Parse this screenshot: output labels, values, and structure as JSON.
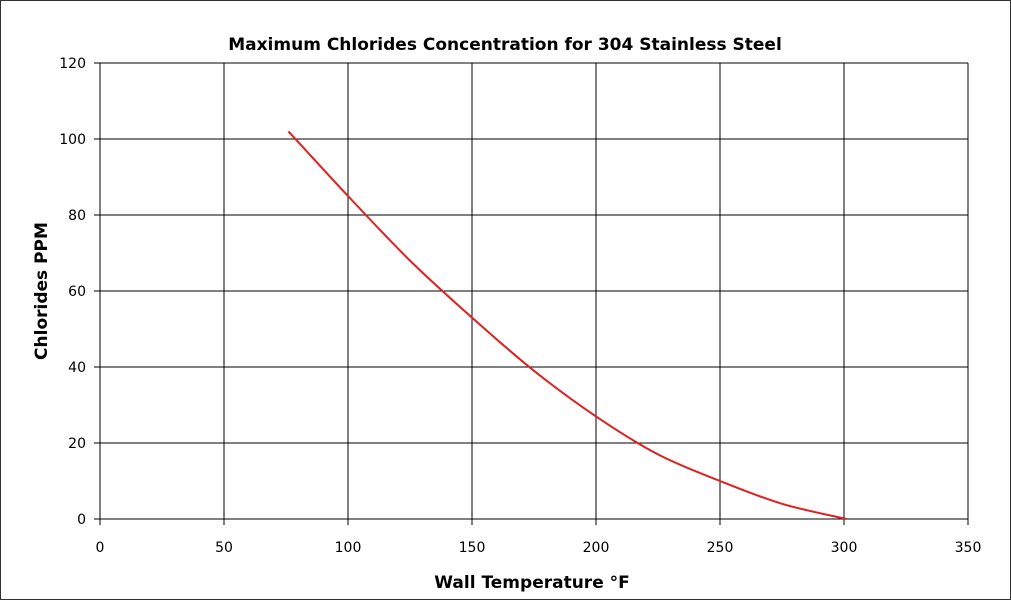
{
  "chart_data": {
    "type": "line",
    "title": "Maximum Chlorides Concentration for 304 Stainless Steel",
    "xlabel": "Wall Temperature °F",
    "ylabel": "Chlorides PPM",
    "xlim": [
      0,
      350
    ],
    "ylim": [
      0,
      120
    ],
    "xticks": [
      0,
      50,
      100,
      150,
      200,
      250,
      300,
      350
    ],
    "yticks": [
      0,
      20,
      40,
      60,
      80,
      100,
      120
    ],
    "grid": true,
    "series": [
      {
        "color": "#e0201e",
        "x": [
          76,
          100,
          125,
          150,
          175,
          200,
          225,
          250,
          275,
          301
        ],
        "y": [
          102,
          85,
          68,
          53,
          39,
          27,
          17,
          10,
          4,
          0
        ]
      }
    ]
  }
}
